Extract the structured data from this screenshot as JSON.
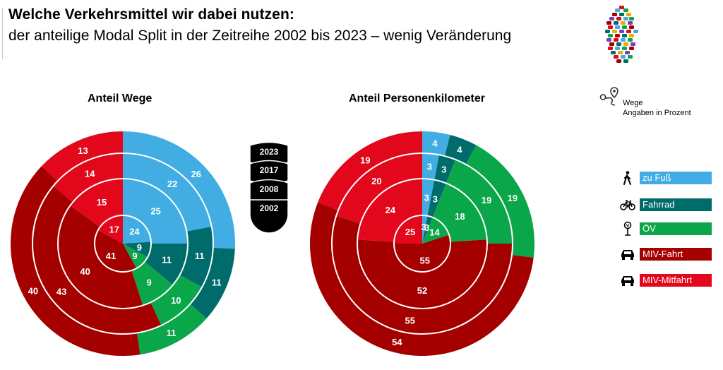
{
  "header": {
    "title": "Welche Verkehrsmittel wir dabei nutzen:",
    "subtitle": "der anteilige Modal Split in der Zeitreihe 2002 bis 2023 – wenig Veränderung"
  },
  "colors": {
    "zu_fuss": "#41ade3",
    "fahrrad": "#006b6b",
    "oev": "#0aa64a",
    "miv_fahrt": "#a50000",
    "miv_mitfahrt": "#e2071a",
    "ring_separator": "#ffffff",
    "year_badge": "#000000"
  },
  "years_legend": [
    "2023",
    "2017",
    "2008",
    "2002"
  ],
  "note": {
    "line1": "Wege",
    "line2": "Angaben in Prozent",
    "icon": "route-pin-icon"
  },
  "legend": [
    {
      "key": "zu_fuss",
      "label": "zu Fuß",
      "icon": "pedestrian-icon"
    },
    {
      "key": "fahrrad",
      "label": "Fahrrad",
      "icon": "bicycle-icon"
    },
    {
      "key": "oev",
      "label": "ÖV",
      "icon": "bus-stop-icon"
    },
    {
      "key": "miv_fahrt",
      "label": "MIV-Fahrt",
      "icon": "car-icon"
    },
    {
      "key": "miv_mitfahrt",
      "label": "MIV-Mitfahrt",
      "icon": "car-icon"
    }
  ],
  "chart_data": [
    {
      "type": "pie",
      "title": "Anteil Wege",
      "rings": [
        "2023",
        "2017",
        "2008",
        "2002"
      ],
      "categories": [
        "zu Fuß",
        "Fahrrad",
        "ÖV",
        "MIV-Fahrt",
        "MIV-Mitfahrt"
      ],
      "series": [
        {
          "name": "2023",
          "values": [
            26,
            11,
            11,
            40,
            13
          ]
        },
        {
          "name": "2017",
          "values": [
            22,
            11,
            10,
            43,
            14
          ]
        },
        {
          "name": "2008",
          "values": [
            25,
            11,
            9,
            40,
            15
          ]
        },
        {
          "name": "2002",
          "values": [
            24,
            9,
            9,
            41,
            17
          ]
        }
      ]
    },
    {
      "type": "pie",
      "title": "Anteil Personenkilometer",
      "rings": [
        "2023",
        "2017",
        "2008",
        "2002"
      ],
      "categories": [
        "zu Fuß",
        "Fahrrad",
        "ÖV",
        "MIV-Fahrt",
        "MIV-Mitfahrt"
      ],
      "series": [
        {
          "name": "2023",
          "values": [
            4,
            4,
            19,
            54,
            19
          ]
        },
        {
          "name": "2017",
          "values": [
            3,
            3,
            19,
            55,
            20
          ]
        },
        {
          "name": "2008",
          "values": [
            3,
            3,
            18,
            52,
            24
          ]
        },
        {
          "name": "2002",
          "values": [
            3,
            3,
            14,
            55,
            25
          ]
        }
      ]
    }
  ]
}
